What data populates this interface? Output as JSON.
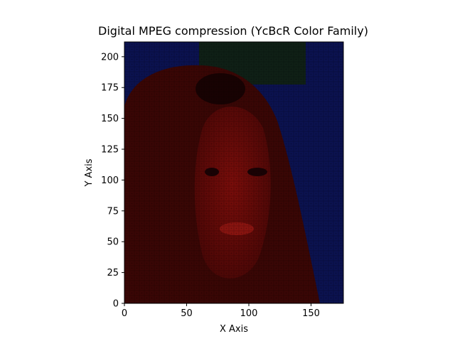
{
  "chart_data": {
    "type": "heatmap",
    "title": "Digital MPEG compression (YcBcR Color Family)",
    "xlabel": "X Axis",
    "ylabel": "Y Axis",
    "xlim": [
      0,
      176
    ],
    "ylim": [
      0,
      212
    ],
    "xticks": [
      0,
      50,
      100,
      150
    ],
    "yticks": [
      0,
      25,
      50,
      75,
      100,
      125,
      150,
      175,
      200
    ],
    "grid": false,
    "colors": {
      "background": "#0b1250",
      "face": "#6a0b08",
      "hair": "#2e0504",
      "shadow": "#180203",
      "green_patch": "#10220f"
    }
  }
}
